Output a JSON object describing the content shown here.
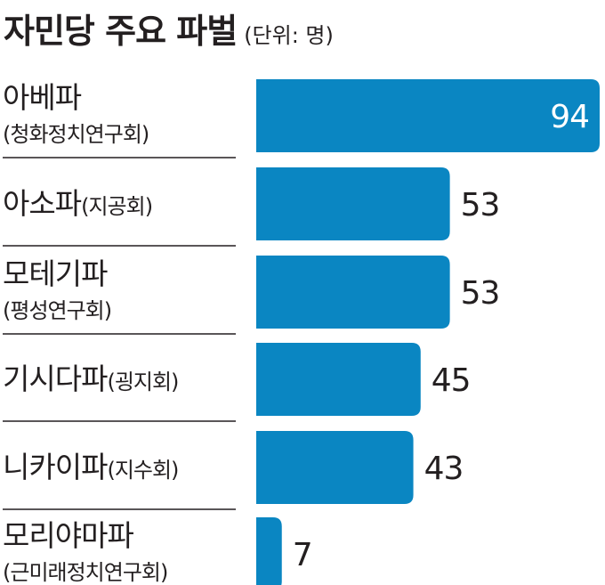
{
  "title": "자민당 주요 파벌",
  "unit": "(단위: 명)",
  "colors": {
    "bar": "#0a86c2",
    "text": "#231f20",
    "divider": "#231f20",
    "value_inside": "#ffffff"
  },
  "chart_data": {
    "type": "bar",
    "orientation": "horizontal",
    "title": "자민당 주요 파벌",
    "unit": "(단위: 명)",
    "categories": [
      {
        "name": "아베파",
        "sub": "(청화정치연구회)"
      },
      {
        "name": "아소파",
        "sub": "(지공회)"
      },
      {
        "name": "모테기파",
        "sub": "(평성연구회)"
      },
      {
        "name": "기시다파",
        "sub": "(굉지회)"
      },
      {
        "name": "니카이파",
        "sub": "(지수회)"
      },
      {
        "name": "모리야마파",
        "sub": "(근미래정치연구회)"
      }
    ],
    "values": [
      94,
      53,
      53,
      45,
      43,
      7
    ],
    "xlim": [
      0,
      94
    ],
    "grid": false,
    "legend": "none"
  }
}
